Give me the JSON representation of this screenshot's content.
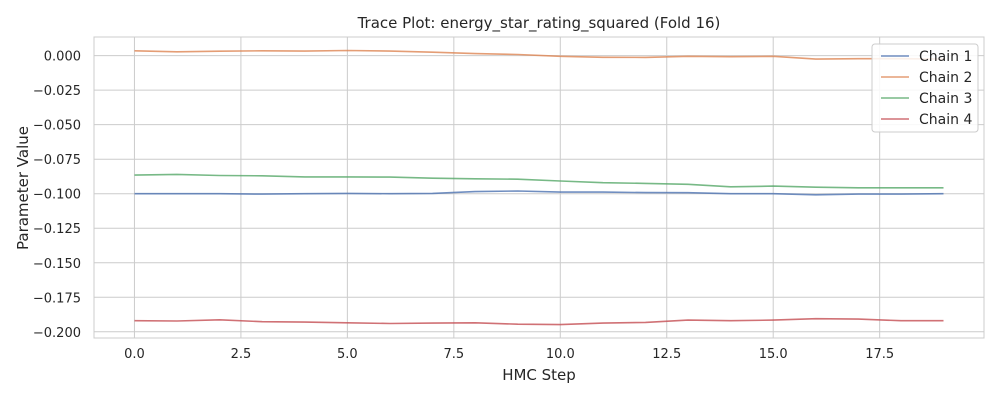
{
  "chart_data": {
    "type": "line",
    "title": "Trace Plot: energy_star_rating_squared (Fold 16)",
    "xlabel": "HMC Step",
    "ylabel": "Parameter Value",
    "xlim": [
      -0.95,
      19.95
    ],
    "ylim": [
      -0.2045,
      0.0135
    ],
    "xticks": [
      0.0,
      2.5,
      5.0,
      7.5,
      10.0,
      12.5,
      15.0,
      17.5
    ],
    "xtick_labels": [
      "0.0",
      "2.5",
      "5.0",
      "7.5",
      "10.0",
      "12.5",
      "15.0",
      "17.5"
    ],
    "yticks": [
      0.0,
      -0.025,
      -0.05,
      -0.075,
      -0.1,
      -0.125,
      -0.15,
      -0.175,
      -0.2
    ],
    "ytick_labels": [
      "0.000",
      "−0.025",
      "−0.050",
      "−0.075",
      "−0.100",
      "−0.125",
      "−0.150",
      "−0.175",
      "−0.200"
    ],
    "grid": true,
    "legend_position": "top-right",
    "x": [
      0,
      1,
      2,
      3,
      4,
      5,
      6,
      7,
      8,
      9,
      10,
      11,
      12,
      13,
      14,
      15,
      16,
      17,
      18,
      19
    ],
    "series": [
      {
        "name": "Chain 1",
        "color": "#4c72b0",
        "values": [
          -0.1,
          -0.1,
          -0.1,
          -0.1003,
          -0.1,
          -0.0998,
          -0.1,
          -0.0998,
          -0.0985,
          -0.098,
          -0.0988,
          -0.0988,
          -0.0992,
          -0.0993,
          -0.1,
          -0.1,
          -0.1008,
          -0.1003,
          -0.1003,
          -0.1
        ]
      },
      {
        "name": "Chain 2",
        "color": "#dd8452",
        "values": [
          0.0035,
          0.0028,
          0.0032,
          0.0035,
          0.0033,
          0.0037,
          0.0033,
          0.0025,
          0.0015,
          0.0008,
          -0.0005,
          -0.0012,
          -0.0013,
          -0.0005,
          -0.0008,
          -0.0005,
          -0.0025,
          -0.0022,
          -0.0022,
          -0.0025
        ]
      },
      {
        "name": "Chain 3",
        "color": "#55a868",
        "values": [
          -0.0865,
          -0.086,
          -0.0868,
          -0.087,
          -0.0878,
          -0.0878,
          -0.088,
          -0.0888,
          -0.0892,
          -0.0895,
          -0.0908,
          -0.092,
          -0.0925,
          -0.0932,
          -0.095,
          -0.0945,
          -0.0953,
          -0.0957,
          -0.0957,
          -0.0957
        ]
      },
      {
        "name": "Chain 4",
        "color": "#c44e52",
        "values": [
          -0.192,
          -0.1922,
          -0.1913,
          -0.1927,
          -0.193,
          -0.1935,
          -0.194,
          -0.1937,
          -0.1935,
          -0.1945,
          -0.1948,
          -0.1937,
          -0.1932,
          -0.1915,
          -0.192,
          -0.1915,
          -0.1905,
          -0.1908,
          -0.192,
          -0.192
        ]
      }
    ]
  }
}
